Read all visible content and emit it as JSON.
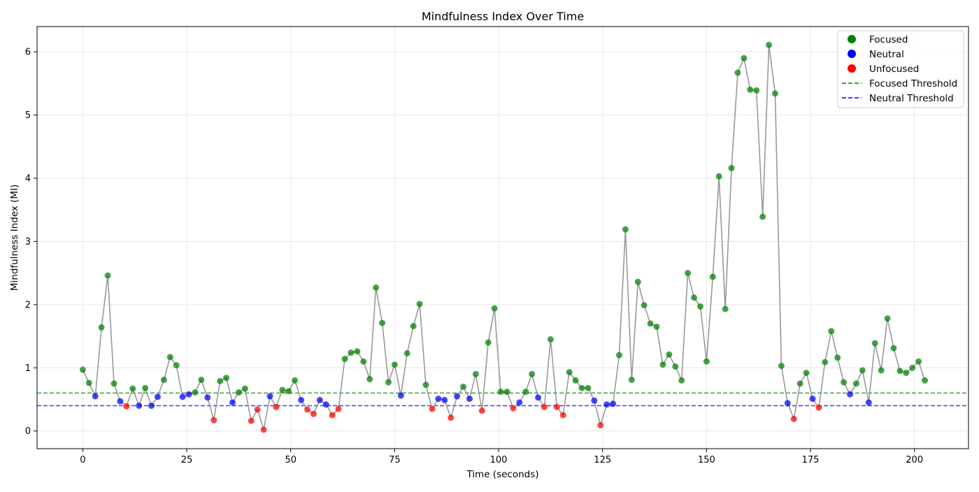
{
  "chart_data": {
    "type": "scatter",
    "title": "Mindfulness Index Over Time",
    "xlabel": "Time (seconds)",
    "ylabel": "Mindfulness Index (MI)",
    "xlim": [
      -11,
      213
    ],
    "ylim": [
      -0.28,
      6.4
    ],
    "x_ticks": [
      0,
      25,
      50,
      75,
      100,
      125,
      150,
      175,
      200
    ],
    "y_ticks": [
      0,
      1,
      2,
      3,
      4,
      5,
      6
    ],
    "x_tick_labels": [
      "0",
      "25",
      "50",
      "75",
      "100",
      "125",
      "150",
      "175",
      "200"
    ],
    "y_tick_labels": [
      "0",
      "1",
      "2",
      "3",
      "4",
      "5",
      "6"
    ],
    "grid": true,
    "legend_position": "top-right",
    "line_color": "#999999",
    "colors": {
      "Focused": "#008000",
      "Neutral": "#0000ff",
      "Unfocused": "#ff0000"
    },
    "thresholds": [
      {
        "name": "Focused Threshold",
        "value": 0.6,
        "color": "#008000"
      },
      {
        "name": "Neutral Threshold",
        "value": 0.4,
        "color": "#0000ff"
      }
    ],
    "legend": [
      {
        "label": "Focused",
        "kind": "marker",
        "color": "#008000"
      },
      {
        "label": "Neutral",
        "kind": "marker",
        "color": "#0000ff"
      },
      {
        "label": "Unfocused",
        "kind": "marker",
        "color": "#ff0000"
      },
      {
        "label": "Focused Threshold",
        "kind": "dashed-line",
        "color": "#008000"
      },
      {
        "label": "Neutral Threshold",
        "kind": "dashed-line",
        "color": "#0000ff"
      }
    ],
    "series": [
      {
        "name": "Mindfulness Index",
        "x": [
          0,
          1.5,
          3,
          4.5,
          6,
          7.5,
          9,
          10.5,
          12,
          13.5,
          15,
          16.5,
          18,
          19.5,
          21,
          22.5,
          24,
          25.5,
          27,
          28.5,
          30,
          31.5,
          33,
          34.5,
          36,
          37.5,
          39,
          40.5,
          42,
          43.5,
          45,
          46.5,
          48,
          49.5,
          51,
          52.5,
          54,
          55.5,
          57,
          58.5,
          60,
          61.5,
          63,
          64.5,
          66,
          67.5,
          69,
          70.5,
          72,
          73.5,
          75,
          76.5,
          78,
          79.5,
          81,
          82.5,
          84,
          85.5,
          87,
          88.5,
          90,
          91.5,
          93,
          94.5,
          96,
          97.5,
          99,
          100.5,
          102,
          103.5,
          105,
          106.5,
          108,
          109.5,
          111,
          112.5,
          114,
          115.5,
          117,
          118.5,
          120,
          121.5,
          123,
          124.5,
          126,
          127.5,
          129,
          130.5,
          132,
          133.5,
          135,
          136.5,
          138,
          139.5,
          141,
          142.5,
          144,
          145.5,
          147,
          148.5,
          150,
          151.5,
          153,
          154.5,
          156,
          157.5,
          159,
          160.5,
          162,
          163.5,
          165,
          166.5,
          168,
          169.5,
          171,
          172.5,
          174,
          175.5,
          177,
          178.5,
          180,
          181.5,
          183,
          184.5,
          186,
          187.5,
          189,
          190.5,
          192,
          193.5,
          195,
          196.5,
          198,
          199.5,
          201,
          202.5
        ],
        "y": [
          0.97,
          0.76,
          0.55,
          1.64,
          2.46,
          0.75,
          0.47,
          0.39,
          0.67,
          0.4,
          0.68,
          0.4,
          0.54,
          0.81,
          1.17,
          1.04,
          0.54,
          0.58,
          0.61,
          0.81,
          0.53,
          0.17,
          0.79,
          0.84,
          0.45,
          0.61,
          0.67,
          0.16,
          0.34,
          0.02,
          0.55,
          0.38,
          0.65,
          0.63,
          0.8,
          0.49,
          0.34,
          0.27,
          0.49,
          0.42,
          0.25,
          0.35,
          1.14,
          1.24,
          1.26,
          1.1,
          0.82,
          2.27,
          1.71,
          0.77,
          1.05,
          0.56,
          1.23,
          1.66,
          2.01,
          0.73,
          0.35,
          0.51,
          0.49,
          0.21,
          0.55,
          0.7,
          0.51,
          0.9,
          0.32,
          1.4,
          1.94,
          0.62,
          0.62,
          0.36,
          0.45,
          0.62,
          0.9,
          0.53,
          0.38,
          1.45,
          0.38,
          0.25,
          0.93,
          0.8,
          0.68,
          0.68,
          0.48,
          0.09,
          0.42,
          0.43,
          1.2,
          3.19,
          0.81,
          2.36,
          1.99,
          1.7,
          1.65,
          1.05,
          1.21,
          1.02,
          0.8,
          2.5,
          2.11,
          1.97,
          1.1,
          2.44,
          4.03,
          1.93,
          4.16,
          5.67,
          5.9,
          5.4,
          5.39,
          3.39,
          6.11,
          5.34,
          1.03,
          0.44,
          0.19,
          0.75,
          0.92,
          0.51,
          0.37,
          1.09,
          1.58,
          1.16,
          0.77,
          0.58,
          0.75,
          0.96,
          0.45,
          1.39,
          0.96,
          1.78,
          1.31,
          0.95,
          0.92,
          1.0,
          1.1,
          0.8
        ]
      }
    ]
  }
}
